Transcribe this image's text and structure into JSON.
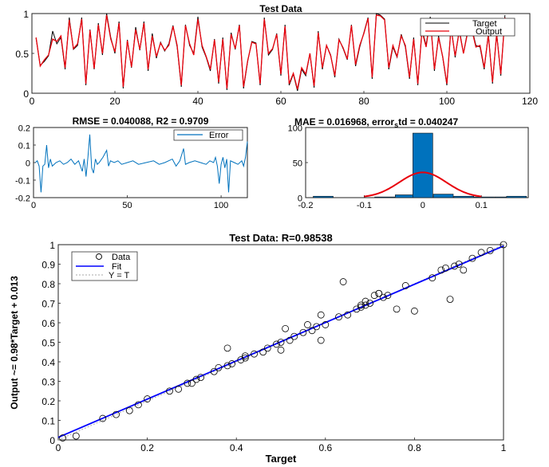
{
  "chart_data": [
    {
      "type": "line",
      "title": "Test Data",
      "xlim": [
        0,
        120
      ],
      "ylim": [
        0,
        1
      ],
      "xticks": [
        "0",
        "20",
        "40",
        "60",
        "80",
        "100",
        "120"
      ],
      "yticks": [
        "0",
        "0.5",
        "1"
      ],
      "legend_position": "top-right",
      "series": [
        {
          "name": "Target",
          "color": "#000000",
          "values": [
            0.69,
            0.35,
            0.4,
            0.47,
            0.78,
            0.62,
            0.7,
            0.3,
            0.95,
            0.55,
            0.6,
            0.95,
            0.1,
            0.8,
            0.3,
            0.88,
            0.48,
            1.0,
            0.7,
            0.5,
            0.9,
            0.06,
            0.67,
            0.32,
            0.83,
            0.54,
            0.9,
            0.28,
            0.75,
            0.44,
            0.64,
            0.53,
            0.62,
            0.85,
            0.58,
            0.08,
            0.86,
            0.6,
            0.5,
            0.96,
            0.58,
            0.45,
            0.28,
            0.68,
            0.12,
            0.7,
            0.04,
            0.76,
            0.55,
            0.86,
            0.06,
            0.4,
            0.65,
            0.63,
            0.1,
            0.95,
            0.48,
            0.55,
            0.75,
            0.22,
            0.86,
            0.1,
            0.24,
            0.03,
            0.3,
            0.22,
            0.5,
            0.07,
            0.78,
            0.3,
            0.6,
            0.48,
            0.2,
            0.68,
            0.56,
            0.42,
            0.86,
            0.34,
            0.58,
            0.76,
            0.95,
            0.18,
            1.0,
            0.98,
            0.93,
            0.3,
            0.58,
            0.45,
            0.74,
            0.58,
            0.18,
            0.7,
            0.1,
            0.8,
            0.6,
            0.96,
            0.28,
            0.72,
            0.45,
            0.1,
            0.84,
            0.45,
            0.8,
            0.5,
            0.78,
            0.82,
            0.6,
            0.58,
            0.3,
            0.75,
            0.12,
            0.76,
            0.22,
            0.98
          ]
        },
        {
          "name": "Output",
          "color": "#e8000b",
          "values": [
            0.7,
            0.34,
            0.42,
            0.48,
            0.68,
            0.65,
            0.72,
            0.32,
            0.92,
            0.56,
            0.62,
            0.93,
            0.12,
            0.79,
            0.31,
            0.86,
            0.5,
            0.98,
            0.68,
            0.52,
            0.88,
            0.08,
            0.66,
            0.33,
            0.8,
            0.55,
            0.88,
            0.3,
            0.72,
            0.46,
            0.63,
            0.54,
            0.6,
            0.84,
            0.6,
            0.1,
            0.85,
            0.62,
            0.48,
            0.93,
            0.6,
            0.46,
            0.3,
            0.67,
            0.14,
            0.68,
            0.06,
            0.74,
            0.56,
            0.85,
            0.08,
            0.41,
            0.64,
            0.62,
            0.12,
            0.93,
            0.5,
            0.56,
            0.74,
            0.24,
            0.84,
            0.12,
            0.25,
            0.05,
            0.32,
            0.24,
            0.5,
            0.09,
            0.76,
            0.32,
            0.6,
            0.47,
            0.22,
            0.67,
            0.57,
            0.43,
            0.85,
            0.36,
            0.6,
            0.75,
            0.94,
            0.2,
            0.98,
            0.97,
            0.92,
            0.32,
            0.6,
            0.46,
            0.72,
            0.6,
            0.2,
            0.68,
            0.12,
            0.78,
            0.58,
            0.94,
            0.3,
            0.7,
            0.46,
            0.12,
            0.82,
            0.47,
            0.78,
            0.5,
            0.76,
            0.8,
            0.58,
            0.6,
            0.32,
            0.73,
            0.14,
            0.74,
            0.24,
            0.95
          ]
        }
      ]
    },
    {
      "type": "line",
      "title": "RMSE = 0.040088, R2 = 0.9709",
      "xlim": [
        0,
        114
      ],
      "ylim": [
        -0.2,
        0.2
      ],
      "xticks": [
        "0",
        "50",
        "100"
      ],
      "yticks": [
        "0.2",
        "0.1",
        "0",
        "-0.1",
        "-0.2"
      ],
      "legend_position": "top-right",
      "series": [
        {
          "name": "Error",
          "color": "#0072bd",
          "points": [
            [
              1,
              0
            ],
            [
              2,
              0.01
            ],
            [
              3,
              -0.02
            ],
            [
              4,
              -0.17
            ],
            [
              5,
              -0.02
            ],
            [
              6,
              -0.01
            ],
            [
              7,
              0.1
            ],
            [
              8,
              -0.03
            ],
            [
              9,
              0.02
            ],
            [
              10,
              -0.02
            ],
            [
              11,
              -0.01
            ],
            [
              12,
              0
            ],
            [
              14,
              0.01
            ],
            [
              16,
              -0.01
            ],
            [
              18,
              0
            ],
            [
              20,
              0.02
            ],
            [
              22,
              -0.01
            ],
            [
              24,
              0.01
            ],
            [
              26,
              -0.05
            ],
            [
              27,
              0.02
            ],
            [
              28,
              -0.08
            ],
            [
              29,
              0.03
            ],
            [
              30,
              0.16
            ],
            [
              31,
              -0.03
            ],
            [
              32,
              -0.06
            ],
            [
              33,
              0.02
            ],
            [
              34,
              -0.01
            ],
            [
              35,
              0
            ],
            [
              37,
              0.03
            ],
            [
              39,
              0.07
            ],
            [
              40,
              -0.02
            ],
            [
              41,
              0.01
            ],
            [
              43,
              0
            ],
            [
              45,
              0.01
            ],
            [
              47,
              -0.01
            ],
            [
              50,
              0
            ],
            [
              53,
              0.01
            ],
            [
              56,
              -0.01
            ],
            [
              60,
              0
            ],
            [
              64,
              0.01
            ],
            [
              67,
              -0.01
            ],
            [
              70,
              0
            ],
            [
              74,
              0.02
            ],
            [
              76,
              -0.02
            ],
            [
              78,
              0.01
            ],
            [
              80,
              0.08
            ],
            [
              81,
              -0.01
            ],
            [
              83,
              0
            ],
            [
              86,
              0.01
            ],
            [
              89,
              0
            ],
            [
              92,
              -0.01
            ],
            [
              94,
              0.01
            ],
            [
              96,
              0
            ],
            [
              97,
              0.03
            ],
            [
              98,
              -0.02
            ],
            [
              99,
              -0.12
            ],
            [
              100,
              -0.01
            ],
            [
              101,
              0.03
            ],
            [
              102,
              -0.03
            ],
            [
              103,
              0.02
            ],
            [
              104,
              -0.17
            ],
            [
              105,
              0.01
            ],
            [
              107,
              0
            ],
            [
              109,
              -0.01
            ],
            [
              111,
              0.01
            ],
            [
              112,
              -0.02
            ],
            [
              113,
              0.03
            ],
            [
              114,
              0.12
            ]
          ]
        }
      ]
    },
    {
      "type": "bar",
      "title": "MAE = 0.016968, error",
      "title_sub": "s",
      "title_rest": "td = 0.040247",
      "xlim": [
        -0.2,
        0.18
      ],
      "ylim": [
        0,
        100
      ],
      "xticks": [
        "-0.2",
        "-0.1",
        "0",
        "0.1"
      ],
      "yticks": [
        "100",
        "50",
        "0"
      ],
      "bins": [
        {
          "x": -0.17,
          "value": 2
        },
        {
          "x": -0.135,
          "value": 0
        },
        {
          "x": -0.1,
          "value": 0
        },
        {
          "x": -0.065,
          "value": 1
        },
        {
          "x": -0.03,
          "value": 4
        },
        {
          "x": 0.0,
          "value": 92
        },
        {
          "x": 0.035,
          "value": 5
        },
        {
          "x": 0.07,
          "value": 2
        },
        {
          "x": 0.105,
          "value": 1
        },
        {
          "x": 0.14,
          "value": 1
        },
        {
          "x": 0.16,
          "value": 2
        }
      ],
      "fit_curve": {
        "color": "#e8000b",
        "mean": 0.0,
        "sd": 0.040247,
        "peak": 36
      },
      "bar_color": "#0072bd"
    },
    {
      "type": "scatter",
      "title": "Test Data: R=0.98538",
      "xlabel": "Target",
      "ylabel": "Output ~= 0.98*Target + 0.013",
      "xlim": [
        0,
        1
      ],
      "ylim": [
        0,
        1
      ],
      "xticks": [
        "0",
        "0.2",
        "0.4",
        "0.6",
        "0.8",
        "1"
      ],
      "yticks": [
        "0",
        "0.1",
        "0.2",
        "0.3",
        "0.4",
        "0.5",
        "0.6",
        "0.7",
        "0.8",
        "0.9",
        "1"
      ],
      "legend_position": "top-left",
      "series": [
        {
          "name": "Data",
          "color": "#000000",
          "points": [
            [
              0.01,
              0.01
            ],
            [
              0.04,
              0.02
            ],
            [
              0.1,
              0.11
            ],
            [
              0.13,
              0.13
            ],
            [
              0.16,
              0.15
            ],
            [
              0.18,
              0.18
            ],
            [
              0.2,
              0.21
            ],
            [
              0.25,
              0.25
            ],
            [
              0.27,
              0.26
            ],
            [
              0.29,
              0.29
            ],
            [
              0.3,
              0.29
            ],
            [
              0.31,
              0.31
            ],
            [
              0.32,
              0.32
            ],
            [
              0.35,
              0.35
            ],
            [
              0.36,
              0.37
            ],
            [
              0.38,
              0.47
            ],
            [
              0.38,
              0.38
            ],
            [
              0.39,
              0.39
            ],
            [
              0.41,
              0.41
            ],
            [
              0.42,
              0.43
            ],
            [
              0.42,
              0.42
            ],
            [
              0.44,
              0.44
            ],
            [
              0.46,
              0.45
            ],
            [
              0.47,
              0.47
            ],
            [
              0.49,
              0.49
            ],
            [
              0.5,
              0.5
            ],
            [
              0.5,
              0.46
            ],
            [
              0.51,
              0.57
            ],
            [
              0.52,
              0.51
            ],
            [
              0.53,
              0.53
            ],
            [
              0.55,
              0.55
            ],
            [
              0.56,
              0.59
            ],
            [
              0.57,
              0.56
            ],
            [
              0.58,
              0.58
            ],
            [
              0.59,
              0.51
            ],
            [
              0.59,
              0.64
            ],
            [
              0.6,
              0.59
            ],
            [
              0.63,
              0.63
            ],
            [
              0.64,
              0.81
            ],
            [
              0.65,
              0.64
            ],
            [
              0.67,
              0.67
            ],
            [
              0.68,
              0.68
            ],
            [
              0.69,
              0.69
            ],
            [
              0.69,
              0.71
            ],
            [
              0.7,
              0.7
            ],
            [
              0.71,
              0.74
            ],
            [
              0.72,
              0.75
            ],
            [
              0.73,
              0.73
            ],
            [
              0.74,
              0.74
            ],
            [
              0.76,
              0.67
            ],
            [
              0.78,
              0.79
            ],
            [
              0.8,
              0.66
            ],
            [
              0.84,
              0.83
            ],
            [
              0.86,
              0.87
            ],
            [
              0.87,
              0.88
            ],
            [
              0.88,
              0.72
            ],
            [
              0.89,
              0.89
            ],
            [
              0.9,
              0.9
            ],
            [
              0.91,
              0.87
            ],
            [
              0.93,
              0.93
            ],
            [
              0.95,
              0.96
            ],
            [
              0.97,
              0.97
            ],
            [
              1.0,
              1.0
            ],
            [
              0.68,
              0.69
            ],
            [
              0.72,
              0.75
            ]
          ]
        },
        {
          "name": "Fit",
          "color": "#0000ff",
          "slope": 0.98,
          "intercept": 0.013
        },
        {
          "name": "Y = T",
          "color": "#aaaaaa"
        }
      ]
    }
  ]
}
